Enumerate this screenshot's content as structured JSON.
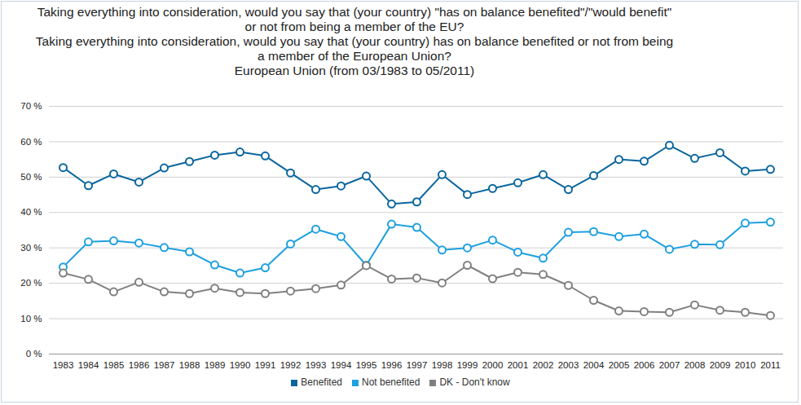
{
  "chart_data": {
    "type": "line",
    "title": "Taking everything into consideration, would you say that (your country) \"has on balance benefited\"/\"would benefit\" or not from being a member of the EU?",
    "subtitle": [
      "Taking everything into consideration, would you say that (your country) has on balance benefited or not from being a member of the European Union?",
      "European Union (from 03/1983 to 05/2011)"
    ],
    "categories": [
      "1983",
      "1984",
      "1985",
      "1986",
      "1987",
      "1988",
      "1989",
      "1990",
      "1991",
      "1992",
      "1993",
      "1994",
      "1995",
      "1996",
      "1997",
      "1998",
      "1999",
      "2000",
      "2001",
      "2002",
      "2003",
      "2004",
      "2005",
      "2006",
      "2007",
      "2008",
      "2009",
      "2010",
      "2011"
    ],
    "series": [
      {
        "name": "Benefited",
        "color": "#0b669e",
        "values": [
          52.7,
          47.6,
          50.9,
          48.6,
          52.6,
          54.4,
          56.2,
          57.1,
          56.0,
          51.2,
          46.5,
          47.5,
          50.3,
          42.4,
          43.0,
          50.7,
          45.1,
          46.8,
          48.4,
          50.7,
          46.5,
          50.4,
          55.0,
          54.5,
          59.0,
          55.3,
          56.9,
          51.7,
          52.2
        ]
      },
      {
        "name": "Not benefited",
        "color": "#1ea0e0",
        "values": [
          24.6,
          31.7,
          32.0,
          31.4,
          30.1,
          28.9,
          25.2,
          22.9,
          24.4,
          31.1,
          35.3,
          33.2,
          25.1,
          36.7,
          35.8,
          29.4,
          30.0,
          32.2,
          28.8,
          27.1,
          34.4,
          34.6,
          33.2,
          33.9,
          29.6,
          31.0,
          30.9,
          37.0,
          37.3
        ]
      },
      {
        "name": "DK - Don't know",
        "color": "#808080",
        "values": [
          22.9,
          21.1,
          17.6,
          20.3,
          17.6,
          17.1,
          18.6,
          17.4,
          17.1,
          17.8,
          18.5,
          19.5,
          25.0,
          21.2,
          21.5,
          20.1,
          25.1,
          21.3,
          23.1,
          22.5,
          19.4,
          15.2,
          12.2,
          12.0,
          11.8,
          13.9,
          12.4,
          11.8,
          10.9
        ]
      }
    ],
    "ylim": [
      0,
      70
    ],
    "yticks": [
      {
        "value": 0,
        "label": "0 %"
      },
      {
        "value": 10,
        "label": "10 %"
      },
      {
        "value": 20,
        "label": "20 %"
      },
      {
        "value": 30,
        "label": "30 %"
      },
      {
        "value": 40,
        "label": "40 %"
      },
      {
        "value": 50,
        "label": "50 %"
      },
      {
        "value": 60,
        "label": "60 %"
      },
      {
        "value": 70,
        "label": "70 %"
      }
    ],
    "grid": true,
    "marker": "circle",
    "legend": "bottom"
  }
}
